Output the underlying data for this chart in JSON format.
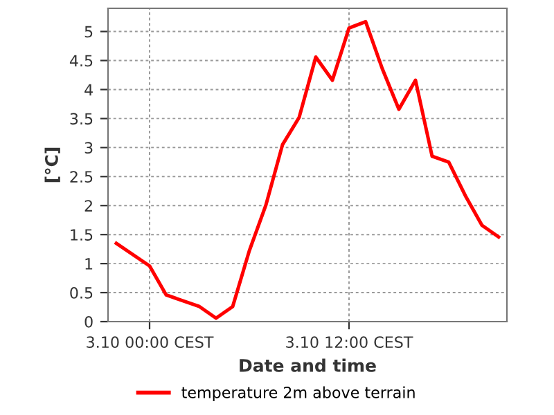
{
  "chart_data": {
    "type": "line",
    "xlabel": "Date and time",
    "ylabel": "[°C]",
    "categories": [
      null,
      null,
      "3.10 00:00 CEST",
      null,
      null,
      null,
      null,
      null,
      null,
      null,
      null,
      null,
      null,
      null,
      "3.10 12:00 CEST",
      null,
      null,
      null,
      null,
      null,
      null,
      null,
      null,
      null
    ],
    "series": [
      {
        "name": "temperature 2m above terrain",
        "color": "#ff0000",
        "values": [
          1.35,
          null,
          0.96,
          0.46,
          null,
          0.26,
          0.06,
          0.26,
          1.22,
          2.01,
          3.05,
          3.52,
          4.56,
          4.16,
          5.06,
          5.17,
          4.36,
          3.66,
          4.16,
          2.85,
          2.75,
          2.17,
          1.66,
          1.46
        ]
      }
    ],
    "ylim": [
      0,
      5.4
    ],
    "yticks": [
      0,
      0.5,
      1,
      1.5,
      2,
      2.5,
      3,
      3.5,
      4,
      4.5,
      5
    ],
    "grid": true,
    "legend": "bottom",
    "marker": "none",
    "line_style": "solid"
  }
}
